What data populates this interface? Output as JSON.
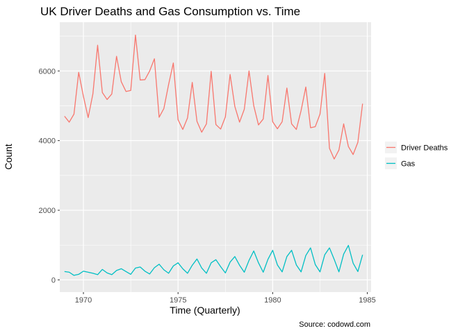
{
  "chart_data": {
    "type": "line",
    "title": "UK Driver Deaths and Gas Consumption vs. Time",
    "xlabel": "Time (Quarterly)",
    "ylabel": "Count",
    "caption": "Source: codowd.com",
    "xlim": [
      1968.75,
      1985.2
    ],
    "ylim": [
      -350,
      7400
    ],
    "x_ticks": [
      1970,
      1975,
      1980,
      1985
    ],
    "y_ticks": [
      0,
      2000,
      4000,
      6000
    ],
    "x_tick_labels": [
      "1970",
      "1975",
      "1980",
      "1985"
    ],
    "y_tick_labels": [
      "0",
      "2000",
      "4000",
      "6000"
    ],
    "grid": true,
    "legend_position": "right",
    "background": "#ebebeb",
    "x": [
      1969.0,
      1969.25,
      1969.5,
      1969.75,
      1970.0,
      1970.25,
      1970.5,
      1970.75,
      1971.0,
      1971.25,
      1971.5,
      1971.75,
      1972.0,
      1972.25,
      1972.5,
      1972.75,
      1973.0,
      1973.25,
      1973.5,
      1973.75,
      1974.0,
      1974.25,
      1974.5,
      1974.75,
      1975.0,
      1975.25,
      1975.5,
      1975.75,
      1976.0,
      1976.25,
      1976.5,
      1976.75,
      1977.0,
      1977.25,
      1977.5,
      1977.75,
      1978.0,
      1978.25,
      1978.5,
      1978.75,
      1979.0,
      1979.25,
      1979.5,
      1979.75,
      1980.0,
      1980.25,
      1980.5,
      1980.75,
      1981.0,
      1981.25,
      1981.5,
      1981.75,
      1982.0,
      1982.25,
      1982.5,
      1982.75,
      1983.0,
      1983.25,
      1983.5,
      1983.75,
      1984.0,
      1984.25,
      1984.5,
      1984.75
    ],
    "series": [
      {
        "name": "Driver Deaths",
        "color": "#f8766d",
        "values": [
          4700,
          4530,
          4760,
          5960,
          5270,
          4660,
          5340,
          6740,
          5380,
          5180,
          5340,
          6420,
          5690,
          5410,
          5440,
          7030,
          5740,
          5750,
          6000,
          6350,
          4670,
          4920,
          5610,
          6230,
          4600,
          4320,
          4650,
          5670,
          4550,
          4240,
          4480,
          5990,
          4460,
          4330,
          4680,
          5900,
          4980,
          4530,
          4900,
          6000,
          5000,
          4450,
          4620,
          5870,
          4540,
          4340,
          4540,
          5510,
          4480,
          4320,
          4860,
          5540,
          4370,
          4400,
          4760,
          5930,
          3780,
          3470,
          3730,
          4480,
          3830,
          3600,
          3950,
          5060
        ]
      },
      {
        "name": "Gas",
        "color": "#00bfc4",
        "values": [
          240,
          220,
          130,
          160,
          250,
          220,
          190,
          150,
          300,
          200,
          150,
          270,
          320,
          240,
          160,
          340,
          370,
          250,
          170,
          350,
          450,
          290,
          190,
          400,
          490,
          320,
          190,
          420,
          600,
          340,
          190,
          490,
          580,
          380,
          200,
          510,
          670,
          420,
          220,
          560,
          830,
          490,
          220,
          590,
          850,
          430,
          230,
          670,
          850,
          430,
          230,
          700,
          920,
          440,
          230,
          720,
          920,
          590,
          230,
          740,
          990,
          480,
          240,
          720
        ]
      }
    ]
  }
}
